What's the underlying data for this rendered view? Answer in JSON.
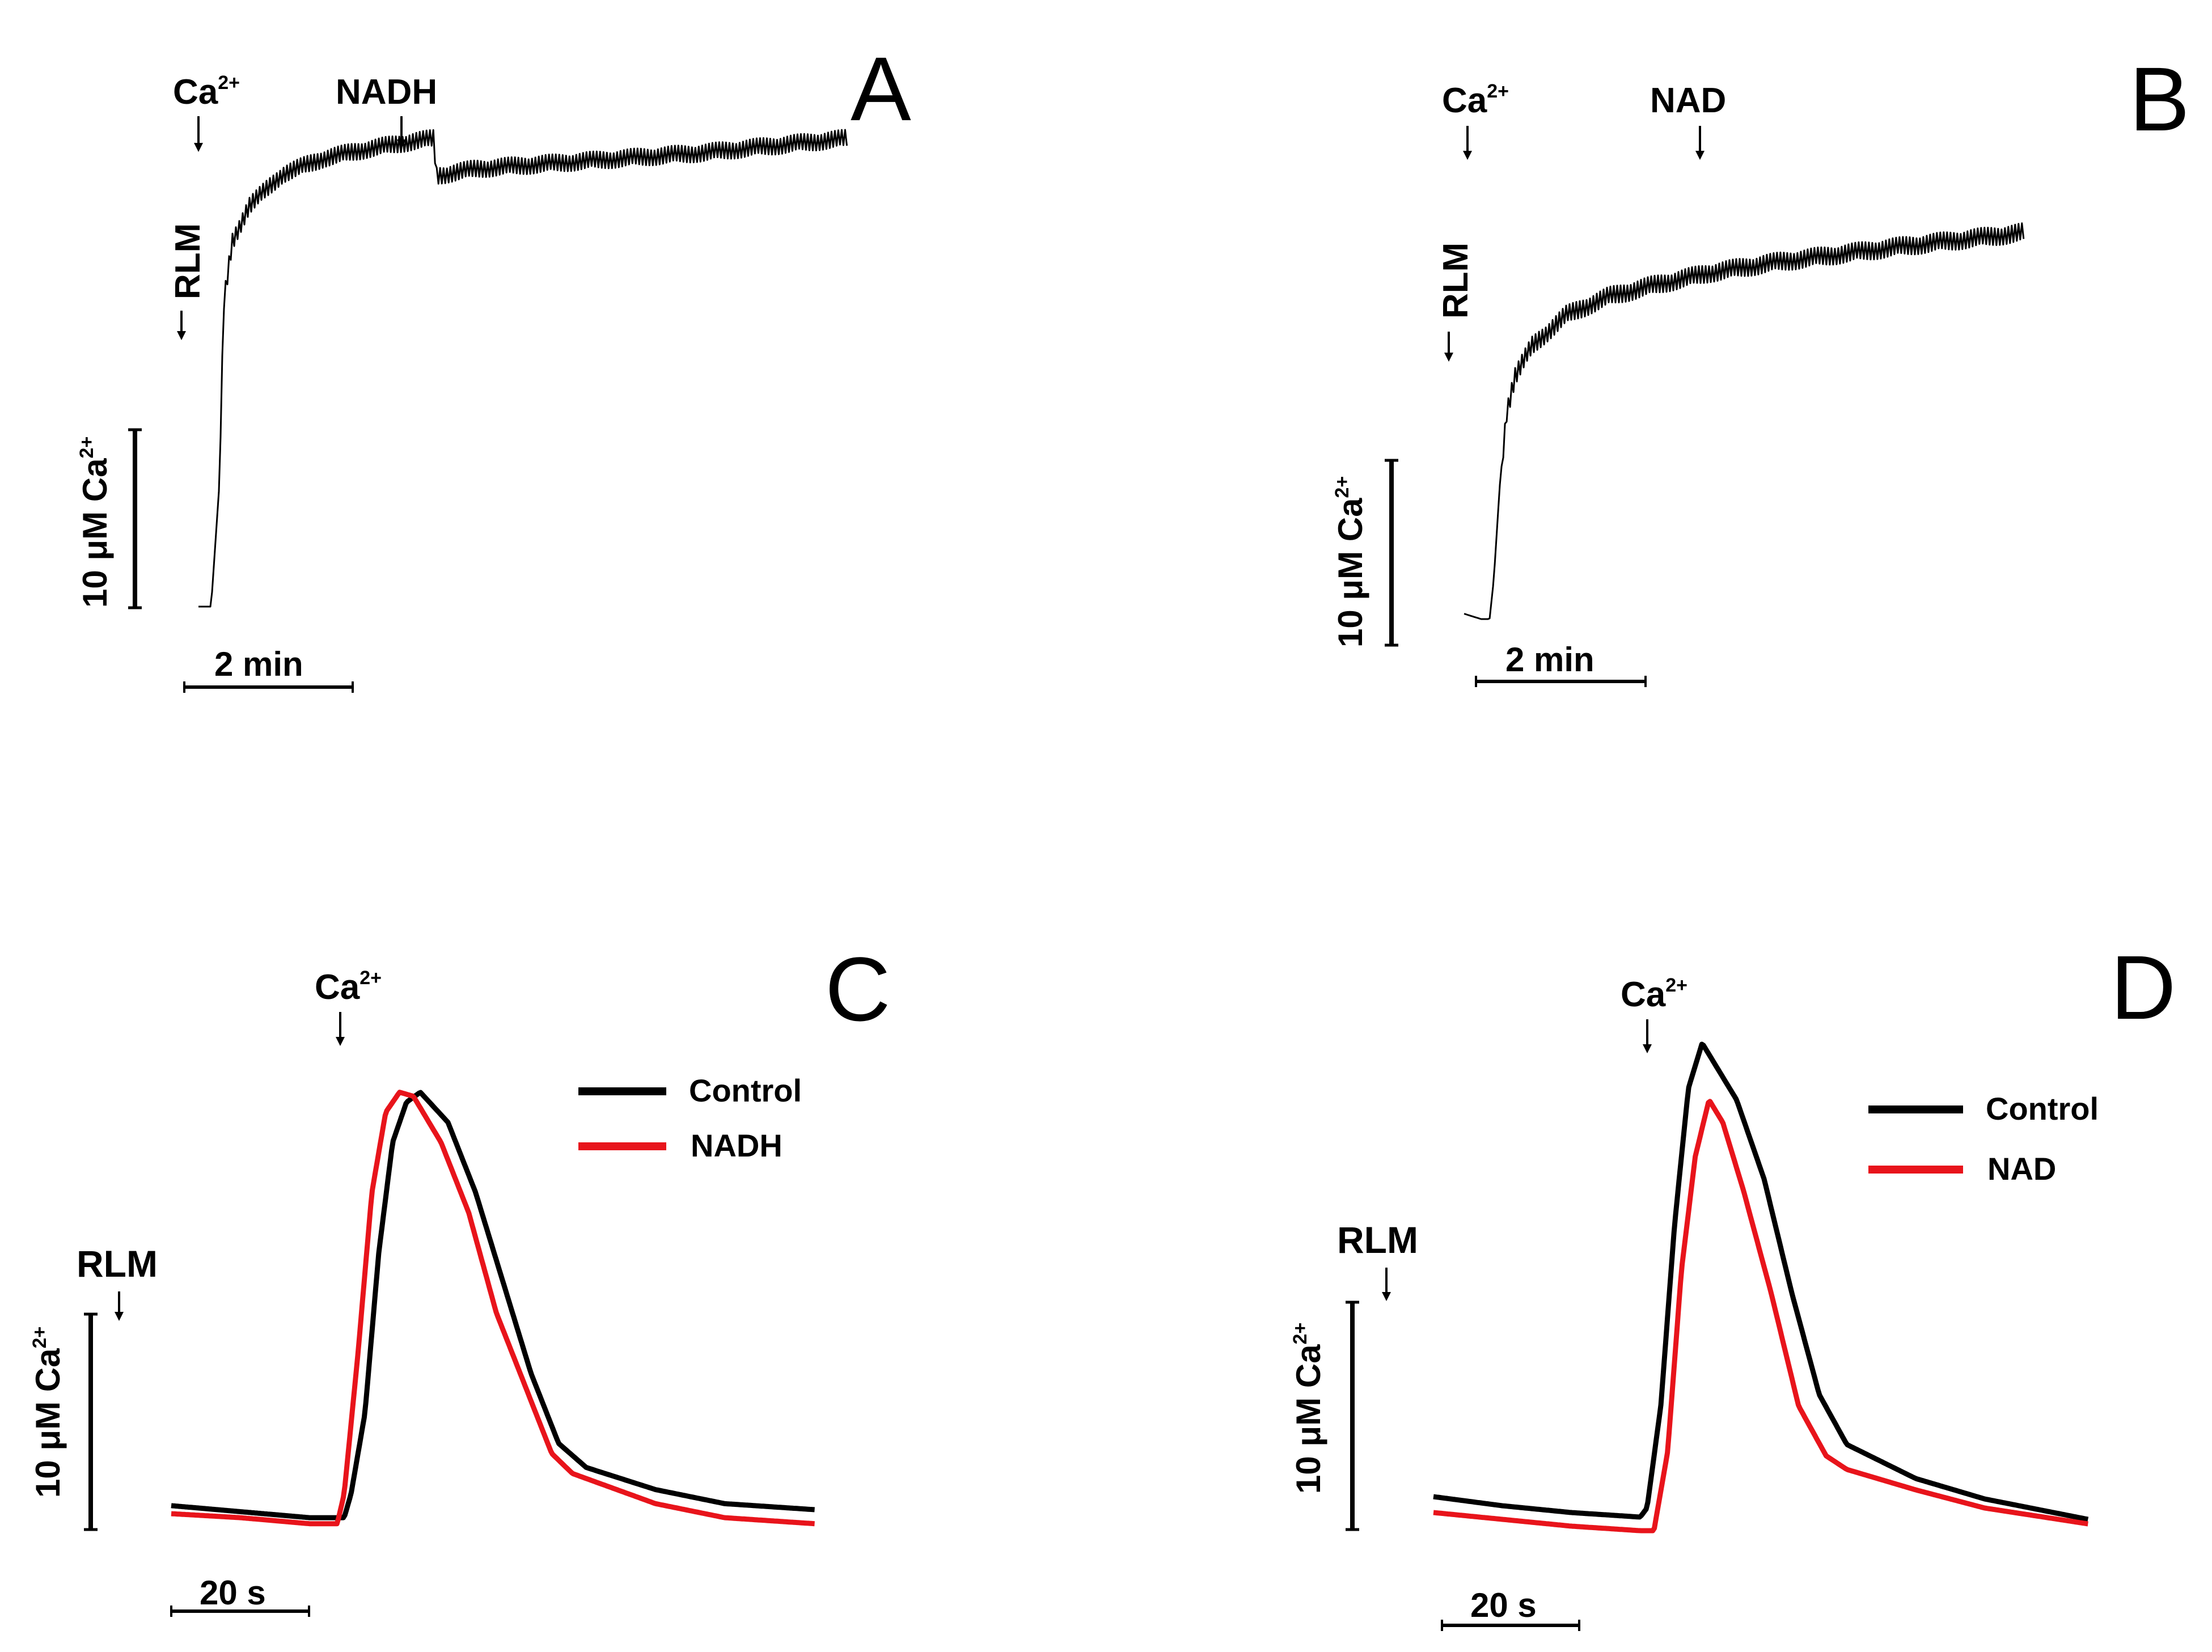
{
  "colors": {
    "ink": "#000000",
    "control": "#000000",
    "treatment": "#e8141b"
  },
  "panels": {
    "A": {
      "letter": "A",
      "markers": {
        "ca": "Ca",
        "ca_sup": "2+",
        "rlm": "RLM",
        "agent": "NADH"
      },
      "scale_bar_y": {
        "label": "10 μM Ca",
        "sup": "2+"
      },
      "scale_bar_x": {
        "label": "2 min"
      }
    },
    "B": {
      "letter": "B",
      "markers": {
        "ca": "Ca",
        "ca_sup": "2+",
        "rlm": "RLM",
        "agent": "NAD"
      },
      "scale_bar_y": {
        "label": "10 μM Ca",
        "sup": "2+"
      },
      "scale_bar_x": {
        "label": "2 min"
      }
    },
    "C": {
      "letter": "C",
      "markers": {
        "ca": "Ca",
        "ca_sup": "2+",
        "rlm": "RLM"
      },
      "scale_bar_y": {
        "label": "10 μM Ca",
        "sup": "2+"
      },
      "scale_bar_x": {
        "label": "20 s"
      },
      "legend": [
        {
          "label": "Control"
        },
        {
          "label": "NADH"
        }
      ]
    },
    "D": {
      "letter": "D",
      "markers": {
        "ca": "Ca",
        "ca_sup": "2+",
        "rlm": "RLM"
      },
      "scale_bar_y": {
        "label": "10 μM Ca",
        "sup": "2+"
      },
      "scale_bar_x": {
        "label": "20 s"
      },
      "legend": [
        {
          "label": "Control"
        },
        {
          "label": "NAD"
        }
      ]
    }
  },
  "chart_data": [
    {
      "panel": "A",
      "type": "line",
      "x_unit": "min",
      "y_unit": "μM Ca2+",
      "annotations": [
        {
          "label": "RLM",
          "x": -0.2
        },
        {
          "label": "Ca2+",
          "x": 0.2
        },
        {
          "label": "NADH",
          "x": 2.8
        }
      ],
      "series": [
        {
          "x": [
            0,
            0.15,
            0.25,
            0.3,
            0.4,
            0.6,
            1.0,
            1.5,
            2.0,
            2.5,
            2.8,
            2.82,
            3.3,
            4.5,
            6.0,
            7.7
          ],
          "y": [
            0,
            0,
            7,
            17,
            20.5,
            22.5,
            24.3,
            25.2,
            25.7,
            26.1,
            26.3,
            24.2,
            24.6,
            25.0,
            25.5,
            26.3
          ]
        }
      ]
    },
    {
      "panel": "B",
      "type": "line",
      "x_unit": "min",
      "y_unit": "μM Ca2+",
      "annotations": [
        {
          "label": "RLM",
          "x": -0.2
        },
        {
          "label": "Ca2+",
          "x": 0.2
        },
        {
          "label": "NAD",
          "x": 2.7
        }
      ],
      "series": [
        {
          "x": [
            -0.2,
            0,
            0.1,
            0.15,
            0.22,
            0.3,
            0.4,
            0.6,
            1.0,
            1.5,
            2.0,
            2.7,
            3.5,
            5.0,
            6.4
          ],
          "y": [
            0.4,
            0,
            0,
            3,
            10,
            15.5,
            18.2,
            20.5,
            22.8,
            24.2,
            25.0,
            26.0,
            26.8,
            28.0,
            29.0
          ]
        }
      ]
    },
    {
      "panel": "C",
      "type": "line",
      "x_unit": "s",
      "y_unit": "μM Ca2+",
      "annotations": [
        {
          "label": "RLM",
          "x": -7
        },
        {
          "label": "Ca2+",
          "x": 25
        }
      ],
      "series": [
        {
          "name": "Control",
          "x": [
            0,
            10,
            20,
            25,
            26,
            28,
            30,
            32,
            34,
            36,
            40,
            44,
            48,
            52,
            56,
            60,
            70,
            80,
            93
          ],
          "y": [
            0.4,
            0.1,
            -0.2,
            -0.2,
            1,
            5,
            13,
            18.5,
            20.5,
            21.0,
            19.5,
            16,
            11.5,
            7,
            3.5,
            2.3,
            1.2,
            0.5,
            0.2
          ]
        },
        {
          "name": "NADH",
          "x": [
            0,
            10,
            20,
            24,
            25,
            27,
            29,
            31,
            33,
            35,
            39,
            43,
            47,
            51,
            55,
            58,
            70,
            80,
            93
          ],
          "y": [
            0,
            -0.2,
            -0.5,
            -0.5,
            1,
            8,
            16,
            20,
            21.0,
            20.8,
            18.5,
            15,
            10,
            6.5,
            3.0,
            2.0,
            0.5,
            -0.2,
            -0.5
          ]
        }
      ]
    },
    {
      "panel": "D",
      "type": "line",
      "x_unit": "s",
      "y_unit": "μM Ca2+",
      "annotations": [
        {
          "label": "RLM",
          "x": -7
        },
        {
          "label": "Ca2+",
          "x": 30
        }
      ],
      "series": [
        {
          "name": "Control",
          "x": [
            0,
            10,
            20,
            30,
            31,
            33,
            35,
            37,
            39,
            41,
            44,
            48,
            52,
            56,
            60,
            64,
            70,
            80,
            95
          ],
          "y": [
            1.0,
            0.6,
            0.3,
            0.1,
            0.5,
            5,
            13,
            19,
            21.0,
            20.0,
            18.5,
            15,
            10,
            5.5,
            3.3,
            2.7,
            1.8,
            0.9,
            0.0
          ]
        },
        {
          "name": "NAD",
          "x": [
            0,
            10,
            20,
            30,
            32,
            34,
            36,
            38,
            40,
            42,
            45,
            49,
            53,
            57,
            60,
            70,
            80,
            95
          ],
          "y": [
            0.3,
            0.0,
            -0.3,
            -0.5,
            -0.5,
            3,
            11,
            16,
            18.5,
            17.5,
            14.5,
            10,
            5.0,
            2.8,
            2.2,
            1.3,
            0.5,
            -0.2
          ]
        }
      ]
    }
  ]
}
